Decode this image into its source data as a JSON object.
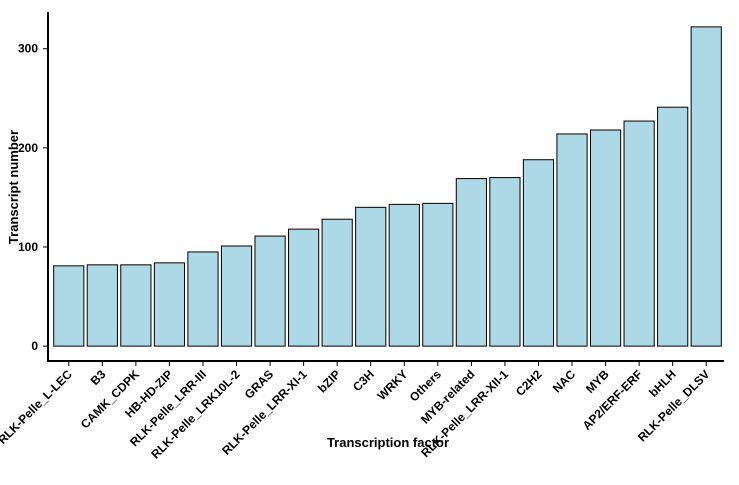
{
  "chart_data": {
    "type": "bar",
    "x_label": "Transcription factor",
    "y_label": "Transcript number",
    "categories": [
      "RLK-Pelle_L-LEC",
      "B3",
      "CAMK_CDPK",
      "HB-HD-ZIP",
      "RLK-Pelle_LRR-III",
      "RLK-Pelle_LRK10L-2",
      "GRAS",
      "RLK-Pelle_LRR-XI-1",
      "bZIP",
      "C3H",
      "WRKY",
      "Others",
      "MYB-related",
      "RLK-Pelle_LRR-XII-1",
      "C2H2",
      "NAC",
      "MYB",
      "AP2/ERF-ERF",
      "bHLH",
      "RLK-Pelle_DLSV"
    ],
    "values": [
      81,
      82,
      82,
      84,
      95,
      101,
      111,
      118,
      128,
      140,
      143,
      144,
      169,
      170,
      188,
      214,
      218,
      227,
      241,
      322
    ],
    "color": "#add8e6",
    "ylim": [
      -15,
      337
    ],
    "yticks": [
      0,
      100,
      200,
      300
    ],
    "grid": false
  }
}
